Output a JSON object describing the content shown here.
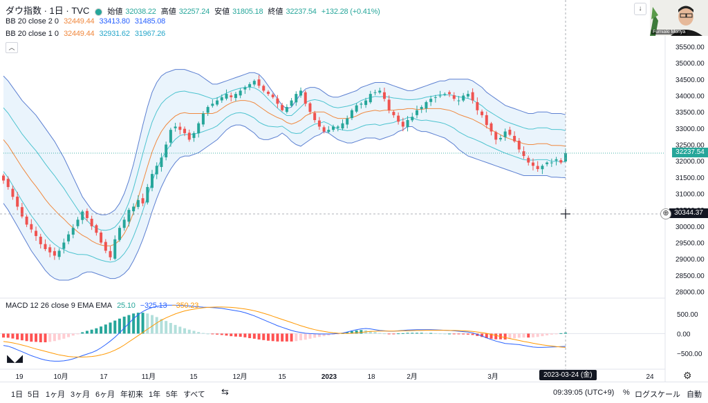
{
  "header": {
    "title": "ダウ指数 · 1日 · TVC",
    "open_label": "始値",
    "open": "32038.22",
    "high_label": "高値",
    "high": "32257.24",
    "low_label": "安値",
    "low": "31805.18",
    "close_label": "終値",
    "close": "32237.54",
    "change": "+132.28 (+0.41%)"
  },
  "indicators": [
    {
      "label": "BB 20 close 2 0",
      "v1": "32449.44",
      "v2": "33413.80",
      "v3": "31485.08"
    },
    {
      "label": "BB 20 close 1 0",
      "v1": "32449.44",
      "v2": "32931.62",
      "v3": "31967.26"
    }
  ],
  "macd": {
    "label": "MACD 12 26 close 9 EMA EMA",
    "v1": "25.10",
    "v2": "−325.13",
    "v3": "−350.23"
  },
  "price_tags": {
    "last": "32237.54",
    "cursor": "30344.37"
  },
  "date_tag": "2023-03-24 (金)",
  "video_name": "Fumiaki Moriya",
  "toolbar": {
    "timeframes": [
      "1日",
      "5日",
      "1ヶ月",
      "3ヶ月",
      "6ヶ月",
      "年初来",
      "1年",
      "5年",
      "すべて"
    ],
    "time": "09:39:05 (UTC+9)",
    "percent": "%",
    "log": "ログスケール",
    "auto": "自動"
  },
  "colors": {
    "up": "#26a69a",
    "down": "#ef5350",
    "bb_outer": "#5b7fd1",
    "bb_inner": "#4cc3cf",
    "basis": "#f0883e",
    "macd": "#2962ff",
    "signal": "#ff9800"
  },
  "chart_data": {
    "type": "candlestick",
    "price_axis": {
      "ticks": [
        28000,
        28500,
        29000,
        29500,
        30000,
        30500,
        31000,
        31500,
        32000,
        32500,
        33000,
        33500,
        34000,
        34500,
        35000,
        35500
      ],
      "ylim": [
        27800,
        35700
      ]
    },
    "macd_axis": {
      "ticks": [
        500,
        0,
        -500
      ],
      "ylim": [
        -850,
        900
      ]
    },
    "x_ticks": [
      "19",
      "10月",
      "17",
      "11月",
      "15",
      "12月",
      "15",
      "2023",
      "18",
      "2月",
      "3月",
      "24"
    ],
    "close_path": [
      31400,
      31200,
      30900,
      30600,
      30300,
      30050,
      29900,
      29700,
      29450,
      29300,
      29200,
      29100,
      29250,
      29500,
      29750,
      29950,
      30200,
      30450,
      30250,
      30000,
      29800,
      29500,
      29250,
      29050,
      29600,
      29950,
      30200,
      30500,
      30600,
      30800,
      30700,
      31200,
      31600,
      31850,
      32100,
      32500,
      32950,
      33050,
      32950,
      32850,
      32650,
      32850,
      33150,
      33450,
      33650,
      33750,
      33850,
      33950,
      34050,
      33950,
      34050,
      34150,
      34250,
      34350,
      34450,
      34300,
      34150,
      34050,
      33950,
      33750,
      33550,
      33650,
      33850,
      34050,
      34150,
      33750,
      33500,
      33250,
      33050,
      32900,
      32950,
      33050,
      33050,
      33150,
      33300,
      33550,
      33700,
      33750,
      33850,
      34050,
      34100,
      34150,
      33900,
      33550,
      33400,
      33200,
      33050,
      33250,
      33350,
      33550,
      33650,
      33800,
      33900,
      33950,
      34000,
      34050,
      34050,
      33900,
      33850,
      34000,
      34050,
      33850,
      33550,
      33400,
      33100,
      32900,
      32650,
      32700,
      32900,
      32800,
      32600,
      32350,
      32150,
      31950,
      31850,
      31750,
      31850,
      31950,
      31950,
      32050,
      31950,
      32237.54
    ],
    "bb_upper": [
      34600,
      34450,
      34250,
      34050,
      33850,
      33700,
      33550,
      33400,
      33200,
      33000,
      32800,
      32600,
      32350,
      32100,
      31800,
      31500,
      31200,
      30900,
      30700,
      30500,
      30400,
      30350,
      30350,
      30400,
      30500,
      30700,
      31000,
      31400,
      31900,
      32500,
      33100,
      33650,
      34100,
      34400,
      34600,
      34700,
      34750,
      34800,
      34800,
      34800,
      34750,
      34700,
      34650,
      34550,
      34450,
      34350,
      34350,
      34400,
      34450,
      34500,
      34550,
      34600,
      34650,
      34700,
      34700,
      34650,
      34500,
      34300,
      34100,
      33900,
      33700,
      33600,
      33650,
      33850,
      34050,
      34200,
      34250,
      34250,
      34200,
      34100,
      34000,
      33950,
      33950,
      34000,
      34050,
      34100,
      34150,
      34250,
      34300,
      34350,
      34400,
      34400,
      34400,
      34350,
      34300,
      34250,
      34200,
      34150,
      34150,
      34200,
      34250,
      34300,
      34350,
      34400,
      34450,
      34450,
      34500,
      34500,
      34500,
      34500,
      34500,
      34450,
      34350,
      34250,
      34100,
      34000,
      33900,
      33800,
      33700,
      33650,
      33600,
      33550,
      33500,
      33450,
      33450,
      33500,
      33500,
      33500,
      33450,
      33450,
      33450,
      33413.8
    ],
    "bb_lower": [
      30700,
      30500,
      30250,
      30000,
      29750,
      29500,
      29250,
      29050,
      28850,
      28650,
      28500,
      28400,
      28350,
      28350,
      28350,
      28400,
      28450,
      28550,
      28600,
      28600,
      28550,
      28500,
      28450,
      28400,
      28400,
      28450,
      28550,
      28700,
      28950,
      29250,
      29600,
      30000,
      30450,
      30850,
      31200,
      31500,
      31750,
      31950,
      32100,
      32150,
      32150,
      32200,
      32250,
      32350,
      32450,
      32550,
      32650,
      32800,
      32950,
      33050,
      33100,
      33100,
      33050,
      32950,
      32850,
      32700,
      32650,
      32650,
      32700,
      32750,
      32850,
      32750,
      32600,
      32500,
      32450,
      32550,
      32650,
      32750,
      32800,
      32900,
      32850,
      32750,
      32650,
      32600,
      32550,
      32550,
      32600,
      32650,
      32700,
      32700,
      32700,
      32650,
      32700,
      32750,
      32800,
      32900,
      32950,
      33050,
      33050,
      32950,
      32900,
      32900,
      32850,
      32800,
      32750,
      32700,
      32600,
      32500,
      32350,
      32250,
      32150,
      32100,
      32050,
      32000,
      31950,
      31900,
      31850,
      31800,
      31750,
      31700,
      31650,
      31600,
      31550,
      31550,
      31550,
      31550,
      31550,
      31550,
      31500,
      31500,
      31490,
      31485.08
    ],
    "macd_line": [
      -300,
      -320,
      -360,
      -410,
      -460,
      -510,
      -560,
      -600,
      -640,
      -670,
      -690,
      -700,
      -700,
      -690,
      -670,
      -640,
      -600,
      -560,
      -520,
      -480,
      -430,
      -360,
      -280,
      -190,
      -90,
      20,
      140,
      260,
      380,
      480,
      560,
      620,
      660,
      690,
      710,
      720,
      720,
      720,
      715,
      710,
      700,
      690,
      680,
      670,
      665,
      660,
      650,
      640,
      620,
      600,
      580,
      560,
      530,
      490,
      450,
      400,
      350,
      300,
      250,
      200,
      160,
      120,
      80,
      50,
      30,
      10,
      0,
      -5,
      -10,
      -10,
      -10,
      -5,
      0,
      15,
      40,
      70,
      100,
      120,
      130,
      120,
      100,
      80,
      70,
      60,
      60,
      70,
      80,
      90,
      95,
      100,
      100,
      100,
      100,
      95,
      90,
      85,
      80,
      70,
      60,
      50,
      40,
      20,
      -20,
      -60,
      -110,
      -150,
      -190,
      -220,
      -250,
      -260,
      -270,
      -280,
      -300,
      -320,
      -340,
      -350,
      -350,
      -345,
      -340,
      -335,
      -330,
      -325.13
    ],
    "signal_line": [
      -200,
      -215,
      -235,
      -260,
      -290,
      -320,
      -355,
      -390,
      -420,
      -450,
      -480,
      -510,
      -540,
      -560,
      -580,
      -590,
      -595,
      -595,
      -590,
      -580,
      -565,
      -540,
      -510,
      -470,
      -420,
      -360,
      -290,
      -210,
      -130,
      -50,
      30,
      110,
      190,
      270,
      340,
      400,
      450,
      500,
      540,
      575,
      600,
      620,
      640,
      655,
      665,
      670,
      675,
      675,
      670,
      665,
      655,
      640,
      625,
      605,
      580,
      550,
      515,
      480,
      440,
      400,
      360,
      320,
      280,
      240,
      200,
      165,
      130,
      100,
      75,
      55,
      35,
      20,
      10,
      5,
      5,
      10,
      20,
      30,
      45,
      55,
      60,
      65,
      65,
      65,
      65,
      65,
      70,
      70,
      75,
      80,
      80,
      85,
      85,
      85,
      85,
      85,
      80,
      80,
      75,
      70,
      65,
      55,
      40,
      25,
      5,
      -20,
      -45,
      -75,
      -100,
      -125,
      -150,
      -175,
      -200,
      -220,
      -245,
      -265,
      -285,
      -300,
      -315,
      -330,
      -340,
      -350.23
    ]
  }
}
